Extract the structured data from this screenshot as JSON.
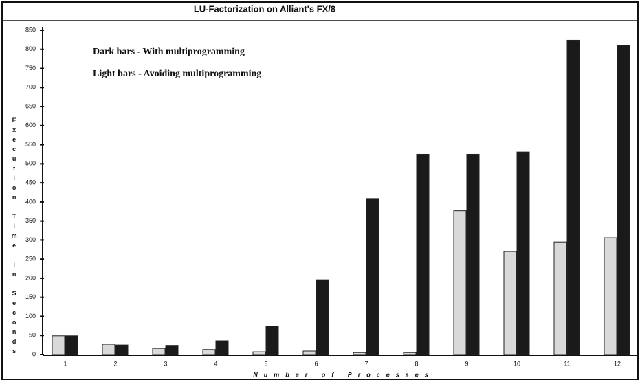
{
  "chart_data": {
    "type": "bar",
    "title": "LU-Factorization on Alliant's FX/8",
    "y_label": "Execution Time in Seconds",
    "x_label": "Number of Processes",
    "categories": [
      "1",
      "2",
      "3",
      "4",
      "5",
      "6",
      "7",
      "8",
      "9",
      "10",
      "11",
      "12"
    ],
    "series": [
      {
        "name": "Light bars - Avoiding multiprogramming",
        "color": "#d9d9d9",
        "values": [
          49,
          27,
          16,
          13,
          7,
          9,
          5,
          5,
          377,
          270,
          295,
          306
        ]
      },
      {
        "name": "Dark bars - With multiprogramming",
        "color": "#1a1a1a",
        "values": [
          49,
          25,
          24,
          36,
          74,
          196,
          409,
          525,
          525,
          531,
          824,
          810
        ]
      }
    ],
    "ylim": [
      0,
      850
    ],
    "yticks": [
      0,
      50,
      100,
      150,
      200,
      250,
      300,
      350,
      400,
      450,
      500,
      550,
      600,
      650,
      700,
      750,
      800,
      850
    ]
  }
}
